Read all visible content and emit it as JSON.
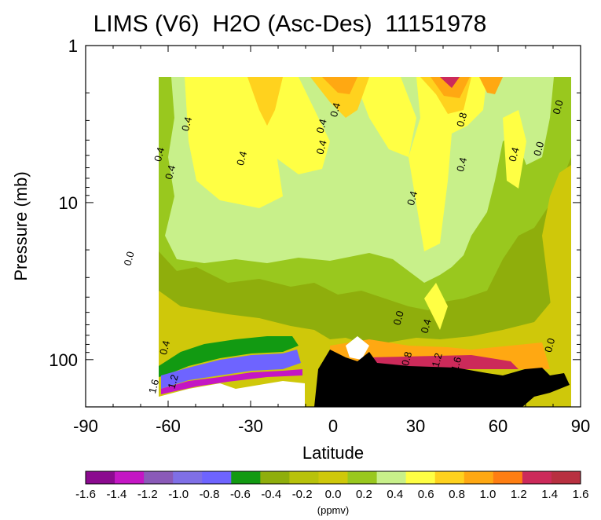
{
  "chart_data": {
    "type": "heatmap",
    "title": "LIMS (V6)  H2O (Asc-Des)  11151978",
    "xlabel": "Latitude",
    "ylabel": "Pressure (mb)",
    "x_ticks": [
      "-90",
      "-60",
      "-30",
      "0",
      "30",
      "60",
      "90"
    ],
    "xlim": [
      -90,
      90
    ],
    "y_ticks": [
      "1",
      "10",
      "100"
    ],
    "ylim": [
      200,
      1
    ],
    "y_scale": "log",
    "data_extent": {
      "lat": [
        -64,
        84
      ],
      "pressure": [
        1.6,
        180
      ]
    },
    "colorbar": {
      "levels": [
        "-1.6",
        "-1.4",
        "-1.2",
        "-1.0",
        "-0.8",
        "-0.6",
        "-0.4",
        "-0.2",
        "0.0",
        "0.2",
        "0.4",
        "0.6",
        "0.8",
        "1.0",
        "1.2",
        "1.4",
        "1.6"
      ],
      "colors": [
        "#8b0a8f",
        "#c416c4",
        "#8a5ab8",
        "#7f6fe6",
        "#6e64ff",
        "#129a12",
        "#8fae0c",
        "#b8c20a",
        "#cfc80a",
        "#99c81e",
        "#c8f08a",
        "#ffff44",
        "#ffd21e",
        "#ffa812",
        "#ff7e12",
        "#cc2a5a",
        "#b83040"
      ],
      "unit": "(ppmv)"
    },
    "contour_labels": [
      {
        "lat": -52,
        "p": 3.2,
        "text": "0.4"
      },
      {
        "lat": -62,
        "p": 5.0,
        "text": "0.4"
      },
      {
        "lat": -58,
        "p": 6.5,
        "text": "0.4"
      },
      {
        "lat": -32,
        "p": 5.3,
        "text": "0.4"
      },
      {
        "lat": -3,
        "p": 3.3,
        "text": "0.4"
      },
      {
        "lat": -3,
        "p": 4.5,
        "text": "0.4"
      },
      {
        "lat": 30,
        "p": 9.5,
        "text": "0.4"
      },
      {
        "lat": 48,
        "p": 5.8,
        "text": "0.4"
      },
      {
        "lat": 48,
        "p": 3.0,
        "text": "0.8"
      },
      {
        "lat": 67,
        "p": 5.0,
        "text": "0.4"
      },
      {
        "lat": 76,
        "p": 4.6,
        "text": "0.0"
      },
      {
        "lat": 83,
        "p": 2.5,
        "text": "0.0"
      },
      {
        "lat": 2,
        "p": 2.6,
        "text": "0.4"
      },
      {
        "lat": -73,
        "p": 23,
        "text": "0.0"
      },
      {
        "lat": 25,
        "p": 55,
        "text": "0.0"
      },
      {
        "lat": 35,
        "p": 62,
        "text": "0.4"
      },
      {
        "lat": 80,
        "p": 82,
        "text": "0.0"
      },
      {
        "lat": -60,
        "p": 85,
        "text": "0.4"
      },
      {
        "lat": -64,
        "p": 150,
        "text": "1.6"
      },
      {
        "lat": -57,
        "p": 140,
        "text": "1.2"
      },
      {
        "lat": 28,
        "p": 100,
        "text": "0.8"
      },
      {
        "lat": 39,
        "p": 102,
        "text": "1.2"
      },
      {
        "lat": 46,
        "p": 108,
        "text": "1.6"
      }
    ]
  }
}
